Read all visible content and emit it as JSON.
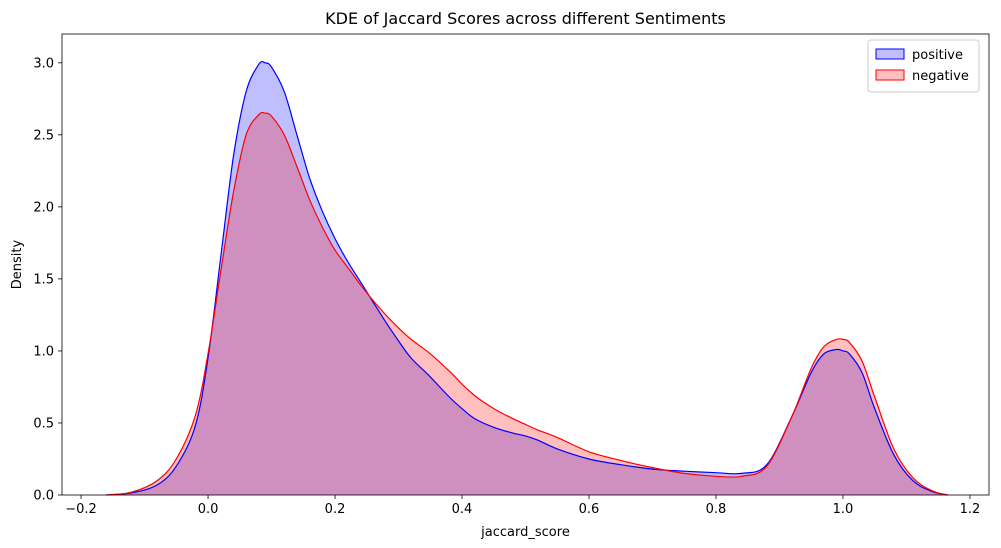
{
  "chart_data": {
    "type": "area",
    "title": "KDE of Jaccard Scores across different Sentiments",
    "xlabel": "jaccard_score",
    "ylabel": "Density",
    "xlim": [
      -0.23,
      1.23
    ],
    "ylim": [
      0,
      3.2
    ],
    "xticks": [
      -0.2,
      0.0,
      0.2,
      0.4,
      0.6,
      0.8,
      1.0,
      1.2
    ],
    "xtick_labels": [
      "−0.2",
      "0.0",
      "0.2",
      "0.4",
      "0.6",
      "0.8",
      "1.0",
      "1.2"
    ],
    "yticks": [
      0.0,
      0.5,
      1.0,
      1.5,
      2.0,
      2.5,
      3.0
    ],
    "ytick_labels": [
      "0.0",
      "0.5",
      "1.0",
      "1.5",
      "2.0",
      "2.5",
      "3.0"
    ],
    "grid": false,
    "legend_position": "top-right",
    "series": [
      {
        "name": "positive",
        "line_color": "#0000ff",
        "fill_color": "#0000ff",
        "fill_opacity": 0.25,
        "x": [
          -0.16,
          -0.12,
          -0.08,
          -0.05,
          -0.02,
          0.0,
          0.02,
          0.04,
          0.06,
          0.08,
          0.09,
          0.1,
          0.12,
          0.14,
          0.16,
          0.18,
          0.2,
          0.22,
          0.24,
          0.26,
          0.28,
          0.3,
          0.32,
          0.35,
          0.38,
          0.4,
          0.42,
          0.45,
          0.48,
          0.5,
          0.52,
          0.55,
          0.6,
          0.65,
          0.7,
          0.75,
          0.8,
          0.84,
          0.88,
          0.92,
          0.95,
          0.97,
          0.99,
          1.0,
          1.01,
          1.03,
          1.05,
          1.08,
          1.11,
          1.14,
          1.165
        ],
        "y": [
          0.0,
          0.015,
          0.07,
          0.2,
          0.48,
          0.95,
          1.65,
          2.35,
          2.8,
          2.99,
          3.0,
          2.97,
          2.8,
          2.5,
          2.2,
          1.97,
          1.78,
          1.62,
          1.48,
          1.34,
          1.2,
          1.07,
          0.95,
          0.82,
          0.68,
          0.6,
          0.53,
          0.47,
          0.43,
          0.41,
          0.38,
          0.32,
          0.25,
          0.21,
          0.18,
          0.165,
          0.155,
          0.15,
          0.21,
          0.55,
          0.85,
          0.98,
          1.01,
          1.0,
          0.98,
          0.85,
          0.6,
          0.28,
          0.1,
          0.025,
          0.0
        ]
      },
      {
        "name": "negative",
        "line_color": "#ff0000",
        "fill_color": "#ff0000",
        "fill_opacity": 0.25,
        "x": [
          -0.16,
          -0.12,
          -0.08,
          -0.05,
          -0.02,
          0.0,
          0.02,
          0.04,
          0.06,
          0.08,
          0.09,
          0.1,
          0.12,
          0.14,
          0.16,
          0.18,
          0.2,
          0.22,
          0.24,
          0.26,
          0.28,
          0.3,
          0.32,
          0.35,
          0.38,
          0.4,
          0.42,
          0.45,
          0.48,
          0.5,
          0.52,
          0.55,
          0.6,
          0.65,
          0.7,
          0.75,
          0.8,
          0.84,
          0.88,
          0.92,
          0.95,
          0.97,
          0.99,
          1.0,
          1.01,
          1.03,
          1.05,
          1.08,
          1.11,
          1.14,
          1.165
        ],
        "y": [
          0.0,
          0.02,
          0.1,
          0.25,
          0.55,
          0.98,
          1.55,
          2.1,
          2.5,
          2.64,
          2.65,
          2.63,
          2.5,
          2.28,
          2.05,
          1.86,
          1.7,
          1.58,
          1.46,
          1.35,
          1.25,
          1.16,
          1.08,
          0.98,
          0.86,
          0.77,
          0.69,
          0.6,
          0.53,
          0.49,
          0.45,
          0.4,
          0.3,
          0.24,
          0.19,
          0.15,
          0.13,
          0.13,
          0.2,
          0.55,
          0.88,
          1.03,
          1.08,
          1.08,
          1.06,
          0.93,
          0.68,
          0.32,
          0.12,
          0.03,
          0.0
        ]
      }
    ]
  }
}
